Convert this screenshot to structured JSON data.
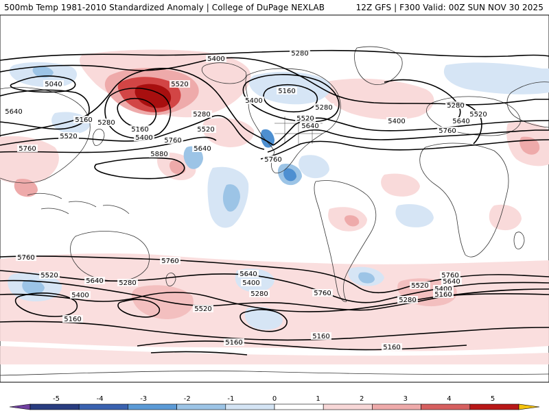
{
  "header": {
    "left_title": "500mb Temp 1981-2010 Standardized Anomaly | College of DuPage NEXLAB",
    "right_title": "12Z GFS | F300 Valid: 00Z SUN NOV 30 2025"
  },
  "contours": {
    "color": "#000000",
    "labels": [
      {
        "id": "nh-5040-pac",
        "text": "5040"
      },
      {
        "id": "nh-5160-pac",
        "text": "5160"
      },
      {
        "id": "nh-5280-pac",
        "text": "5280"
      },
      {
        "id": "nh-5400-pac",
        "text": "5400"
      },
      {
        "id": "nh-5520-pac",
        "text": "5520"
      },
      {
        "id": "nh-5640-pac",
        "text": "5640"
      },
      {
        "id": "nh-5760-pac",
        "text": "5760"
      },
      {
        "id": "nh-5880-pac",
        "text": "5880"
      },
      {
        "id": "nh-5400-top",
        "text": "5400"
      },
      {
        "id": "nh-5520-ak",
        "text": "5520"
      },
      {
        "id": "nh-5280-ak",
        "text": "5280"
      },
      {
        "id": "nh-5160-ak",
        "text": "5160"
      },
      {
        "id": "nh-5400-ak",
        "text": "5400"
      },
      {
        "id": "nh-5520-npac",
        "text": "5520"
      },
      {
        "id": "nh-5760-npac",
        "text": "5760"
      },
      {
        "id": "nh-5640-npac",
        "text": "5640"
      },
      {
        "id": "nh-5640-west",
        "text": "5640"
      },
      {
        "id": "nh-5520-west",
        "text": "5520"
      },
      {
        "id": "nh-5160-west",
        "text": "5160"
      },
      {
        "id": "nh-5760-west",
        "text": "5760"
      },
      {
        "id": "nh-5280-arc",
        "text": "5280"
      },
      {
        "id": "nh-5160-can",
        "text": "5160"
      },
      {
        "id": "nh-5400-can",
        "text": "5400"
      },
      {
        "id": "nh-5280-can",
        "text": "5280"
      },
      {
        "id": "nh-5520-us",
        "text": "5520"
      },
      {
        "id": "nh-5640-us",
        "text": "5640"
      },
      {
        "id": "nh-5760-us",
        "text": "5760"
      },
      {
        "id": "nh-5400-atl",
        "text": "5400"
      },
      {
        "id": "nh-5280-eur",
        "text": "5280"
      },
      {
        "id": "nh-5520-eur",
        "text": "5520"
      },
      {
        "id": "nh-5640-eur",
        "text": "5640"
      },
      {
        "id": "nh-5760-eur",
        "text": "5760"
      },
      {
        "id": "sh-5760-w",
        "text": "5760"
      },
      {
        "id": "sh-5520-w",
        "text": "5520"
      },
      {
        "id": "sh-5640-w",
        "text": "5640"
      },
      {
        "id": "sh-5400-w",
        "text": "5400"
      },
      {
        "id": "sh-5280-w",
        "text": "5280"
      },
      {
        "id": "sh-5160-w",
        "text": "5160"
      },
      {
        "id": "sh-5760-pac",
        "text": "5760"
      },
      {
        "id": "sh-5640-pac",
        "text": "5640"
      },
      {
        "id": "sh-5400-pac",
        "text": "5400"
      },
      {
        "id": "sh-5280-pac",
        "text": "5280"
      },
      {
        "id": "sh-5520-pac",
        "text": "5520"
      },
      {
        "id": "sh-5160-pac",
        "text": "5160"
      },
      {
        "id": "sh-5760-sam",
        "text": "5760"
      },
      {
        "id": "sh-5160-sam",
        "text": "5160"
      },
      {
        "id": "sh-5760-atl",
        "text": "5760"
      },
      {
        "id": "sh-5640-atl",
        "text": "5640"
      },
      {
        "id": "sh-5520-atl",
        "text": "5520"
      },
      {
        "id": "sh-5400-atl",
        "text": "5400"
      },
      {
        "id": "sh-5160-atl",
        "text": "5160"
      },
      {
        "id": "sh-5280-atl",
        "text": "5280"
      },
      {
        "id": "sh-5160-satl",
        "text": "5160"
      }
    ]
  },
  "colorbar": {
    "ticks": [
      "-5",
      "-4",
      "-3",
      "-2",
      "-1",
      "0",
      "1",
      "2",
      "3",
      "4",
      "5"
    ],
    "colors": [
      "#293d80",
      "#3a62b0",
      "#5b9ad6",
      "#9cc4e6",
      "#d4e4f4",
      "#ffffff",
      "#f7d7d7",
      "#eeaaaa",
      "#d66060",
      "#b81818",
      "#7d0000"
    ],
    "low_arrow_color": "#7040a0",
    "high_arrow_color": "#f4c20d"
  },
  "palette": {
    "warm_light": "#f9dada",
    "warm_mid": "#eeaaaa",
    "warm_strong": "#d24545",
    "warm_max": "#a80f0f",
    "cool_light": "#d6e5f5",
    "cool_mid": "#9cc4e6",
    "cool_strong": "#4d8fd1",
    "land_outline": "#333333",
    "contour": "#000000"
  }
}
